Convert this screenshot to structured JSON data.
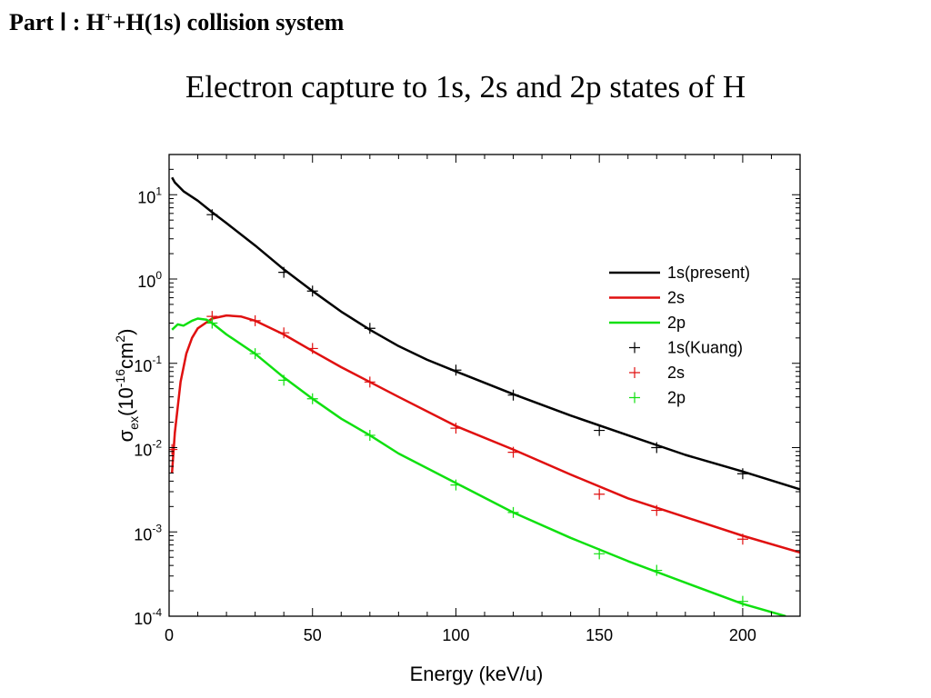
{
  "heading": {
    "part": "Part Ⅰ : H",
    "sup": "+",
    "rest": "+H(1s) collision system"
  },
  "title": "Electron capture to 1s, 2s and 2p states of H",
  "chart_data": {
    "type": "line",
    "xlabel": "Energy (keV/u)",
    "ylabel": "σex(10^-16 cm^2)",
    "xlim": [
      0,
      220
    ],
    "ylim": [
      0.0001,
      30
    ],
    "yscale": "log",
    "x_ticks": [
      0,
      50,
      100,
      150,
      200
    ],
    "y_ticks": [
      {
        "value": 10,
        "base": "10",
        "exp": "1"
      },
      {
        "value": 1,
        "base": "10",
        "exp": "0"
      },
      {
        "value": 0.1,
        "base": "10",
        "exp": "-1"
      },
      {
        "value": 0.01,
        "base": "10",
        "exp": "-2"
      },
      {
        "value": 0.001,
        "base": "10",
        "exp": "-3"
      },
      {
        "value": 0.0001,
        "base": "10",
        "exp": "-4"
      }
    ],
    "grid": false,
    "legend_position": "upper-right",
    "series": [
      {
        "name": "1s(present)",
        "kind": "line",
        "color": "#000000",
        "x": [
          1,
          2,
          5,
          10,
          15,
          20,
          30,
          40,
          50,
          60,
          70,
          80,
          90,
          100,
          120,
          140,
          160,
          180,
          200,
          220
        ],
        "y": [
          16,
          14,
          11,
          8.5,
          6.2,
          4.6,
          2.5,
          1.3,
          0.72,
          0.41,
          0.25,
          0.16,
          0.11,
          0.08,
          0.043,
          0.024,
          0.014,
          0.0082,
          0.0052,
          0.0032
        ]
      },
      {
        "name": "2s",
        "kind": "line",
        "color": "#e01010",
        "x": [
          1,
          2,
          4,
          6,
          8,
          10,
          15,
          20,
          25,
          30,
          40,
          50,
          60,
          70,
          80,
          100,
          120,
          140,
          160,
          180,
          200,
          220
        ],
        "y": [
          0.005,
          0.015,
          0.06,
          0.13,
          0.2,
          0.26,
          0.34,
          0.37,
          0.36,
          0.32,
          0.22,
          0.14,
          0.09,
          0.06,
          0.04,
          0.018,
          0.0095,
          0.0048,
          0.0025,
          0.0015,
          0.0009,
          0.00057
        ]
      },
      {
        "name": "2p",
        "kind": "line",
        "color": "#10e010",
        "x": [
          1,
          3,
          5,
          8,
          10,
          13,
          15,
          20,
          30,
          40,
          50,
          60,
          70,
          80,
          100,
          120,
          140,
          160,
          180,
          200,
          215
        ],
        "y": [
          0.25,
          0.29,
          0.28,
          0.32,
          0.34,
          0.33,
          0.3,
          0.22,
          0.13,
          0.068,
          0.038,
          0.022,
          0.014,
          0.0085,
          0.0038,
          0.0017,
          0.00085,
          0.00045,
          0.00025,
          0.00014,
          0.0001
        ]
      },
      {
        "name": "1s(Kuang)",
        "kind": "marker",
        "color": "#000000",
        "x": [
          15,
          40,
          50,
          70,
          100,
          120,
          150,
          170,
          200
        ],
        "y": [
          5.8,
          1.2,
          0.72,
          0.26,
          0.083,
          0.042,
          0.016,
          0.01,
          0.0049
        ]
      },
      {
        "name": "2s",
        "kind": "marker",
        "color": "#e01010",
        "x": [
          1,
          15,
          30,
          40,
          50,
          70,
          100,
          120,
          150,
          170,
          200
        ],
        "y": [
          0.0095,
          0.36,
          0.32,
          0.23,
          0.15,
          0.06,
          0.017,
          0.0088,
          0.0028,
          0.0018,
          0.00082
        ]
      },
      {
        "name": "2p",
        "kind": "marker",
        "color": "#10e010",
        "x": [
          15,
          30,
          40,
          50,
          70,
          100,
          120,
          150,
          170,
          200
        ],
        "y": [
          0.3,
          0.13,
          0.063,
          0.038,
          0.014,
          0.0036,
          0.0017,
          0.00055,
          0.00035,
          0.00015
        ]
      }
    ]
  }
}
